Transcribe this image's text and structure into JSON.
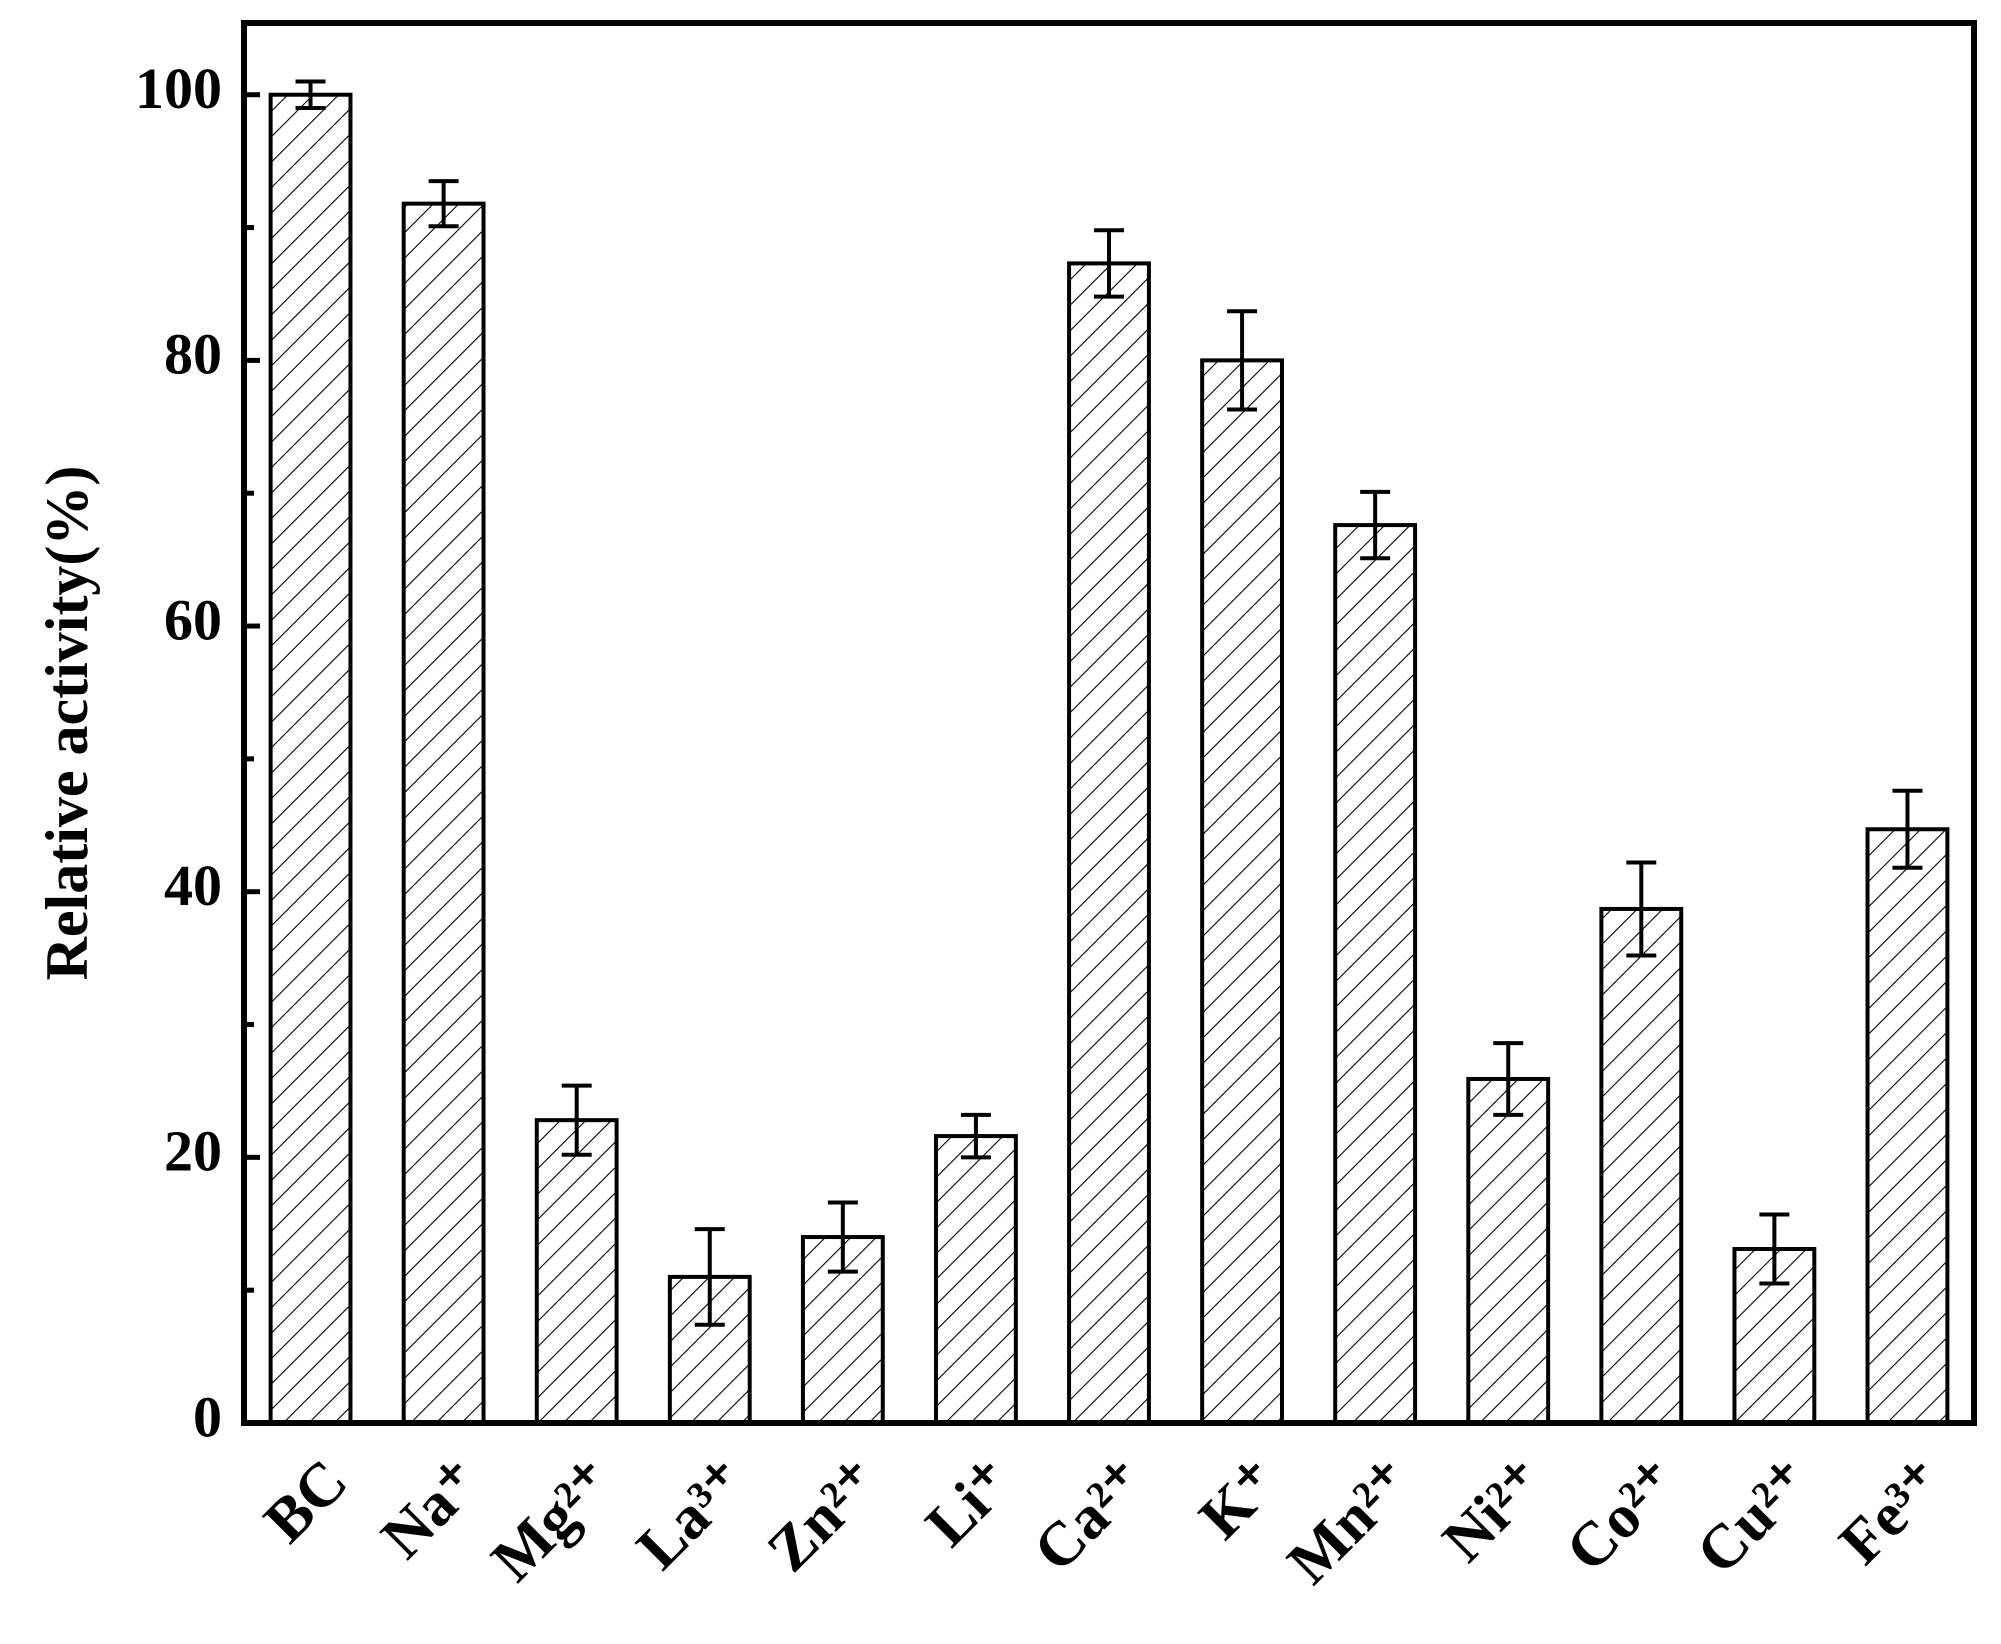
{
  "chart_data": {
    "type": "bar",
    "y_label": "Relative activity(%)",
    "categories": [
      "BC",
      "Na⁺",
      "Mg²⁺",
      "La³⁺",
      "Zn²⁺",
      "Li⁺",
      "Ca²⁺",
      "K⁺",
      "Mn²⁺",
      "Ni²⁺",
      "Co²⁺",
      "Cu²⁺",
      "Fe³⁺"
    ],
    "values": [
      100,
      91.8,
      22.8,
      11.0,
      14.0,
      21.6,
      87.3,
      80.0,
      67.6,
      25.9,
      38.7,
      13.1,
      44.7
    ],
    "errors": [
      1.0,
      1.7,
      2.6,
      3.6,
      2.6,
      1.6,
      2.5,
      3.7,
      2.5,
      2.7,
      3.5,
      2.6,
      2.9
    ],
    "color": "#ffffff",
    "hatch": "/",
    "ylim": [
      0,
      105.4
    ],
    "yticks": [
      0,
      20,
      40,
      60,
      80,
      100
    ],
    "minor_yticks": [
      10,
      30,
      50,
      70,
      90
    ],
    "grid": false
  }
}
